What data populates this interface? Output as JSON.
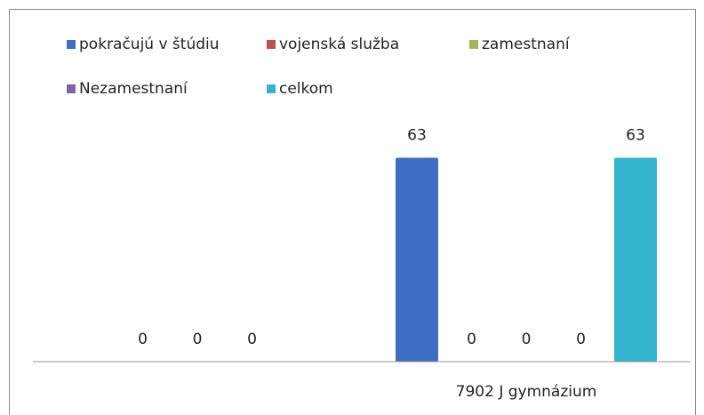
{
  "chart_data": {
    "type": "bar",
    "categories": [
      null,
      "7902 J gymnázium"
    ],
    "series": [
      {
        "name": "pokračujú v štúdiu",
        "color": "#3c6fc4",
        "values": [
          null,
          63
        ]
      },
      {
        "name": "vojenská služba",
        "color": "#c0504d",
        "values": [
          0,
          0
        ]
      },
      {
        "name": "zamestnaní",
        "color": "#9bbb59",
        "values": [
          0,
          0
        ]
      },
      {
        "name": "Nezamestnaní",
        "color": "#8064a2",
        "values": [
          0,
          0
        ]
      },
      {
        "name": "celkom",
        "color": "#33b4cf",
        "values": [
          null,
          63
        ]
      }
    ],
    "ylim": [
      0,
      70
    ]
  }
}
